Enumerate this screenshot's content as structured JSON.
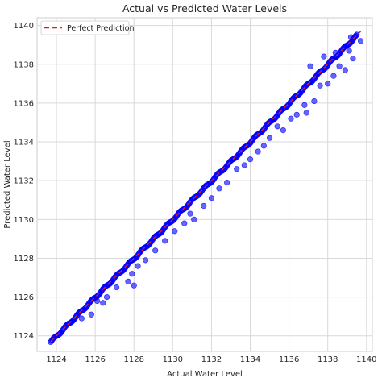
{
  "chart_data": {
    "type": "scatter",
    "title": "Actual vs Predicted Water Levels",
    "xlabel": "Actual Water Level",
    "ylabel": "Predicted Water Level",
    "xlim": [
      1123.0,
      1140.3
    ],
    "ylim": [
      1123.2,
      1140.4
    ],
    "xticks": [
      1124,
      1126,
      1128,
      1130,
      1132,
      1134,
      1136,
      1138,
      1140
    ],
    "yticks": [
      1124,
      1126,
      1128,
      1130,
      1132,
      1134,
      1136,
      1138,
      1140
    ],
    "grid": true,
    "legend_position": "top-left",
    "series": [
      {
        "kind": "points",
        "color": "#0000ff",
        "opacity": 0.6,
        "trend_range": [
          1123.7,
          1139.5
        ],
        "outliers": [
          [
            1125.3,
            1124.9
          ],
          [
            1125.8,
            1125.1
          ],
          [
            1126.1,
            1125.8
          ],
          [
            1126.4,
            1125.7
          ],
          [
            1126.6,
            1126.0
          ],
          [
            1127.1,
            1126.5
          ],
          [
            1127.7,
            1126.8
          ],
          [
            1127.9,
            1127.2
          ],
          [
            1128.2,
            1127.6
          ],
          [
            1128.6,
            1127.9
          ],
          [
            1129.1,
            1128.4
          ],
          [
            1129.6,
            1128.9
          ],
          [
            1130.1,
            1129.4
          ],
          [
            1130.6,
            1129.8
          ],
          [
            1131.1,
            1130.0
          ],
          [
            1130.9,
            1130.3
          ],
          [
            1131.6,
            1130.7
          ],
          [
            1132.0,
            1131.1
          ],
          [
            1132.4,
            1131.6
          ],
          [
            1132.8,
            1131.9
          ],
          [
            1133.3,
            1132.6
          ],
          [
            1133.7,
            1132.8
          ],
          [
            1134.0,
            1133.1
          ],
          [
            1134.4,
            1133.5
          ],
          [
            1134.7,
            1133.8
          ],
          [
            1135.0,
            1134.2
          ],
          [
            1135.4,
            1134.8
          ],
          [
            1135.7,
            1134.6
          ],
          [
            1136.1,
            1135.2
          ],
          [
            1136.4,
            1135.4
          ],
          [
            1136.8,
            1135.9
          ],
          [
            1136.9,
            1135.5
          ],
          [
            1137.3,
            1136.1
          ],
          [
            1137.6,
            1136.9
          ],
          [
            1138.0,
            1137.0
          ],
          [
            1138.3,
            1137.4
          ],
          [
            1138.6,
            1137.9
          ],
          [
            1138.9,
            1137.7
          ],
          [
            1139.3,
            1138.3
          ],
          [
            1139.1,
            1138.7
          ],
          [
            1139.7,
            1139.2
          ],
          [
            1139.2,
            1139.4
          ],
          [
            1138.4,
            1138.6
          ],
          [
            1137.8,
            1138.4
          ],
          [
            1137.1,
            1137.9
          ],
          [
            1128.0,
            1126.6
          ]
        ]
      },
      {
        "name": "Perfect Prediction",
        "kind": "line",
        "color": "#e31a1c",
        "dash": true,
        "x": [
          1123.7,
          1139.7
        ],
        "y": [
          1123.7,
          1139.7
        ]
      }
    ]
  }
}
